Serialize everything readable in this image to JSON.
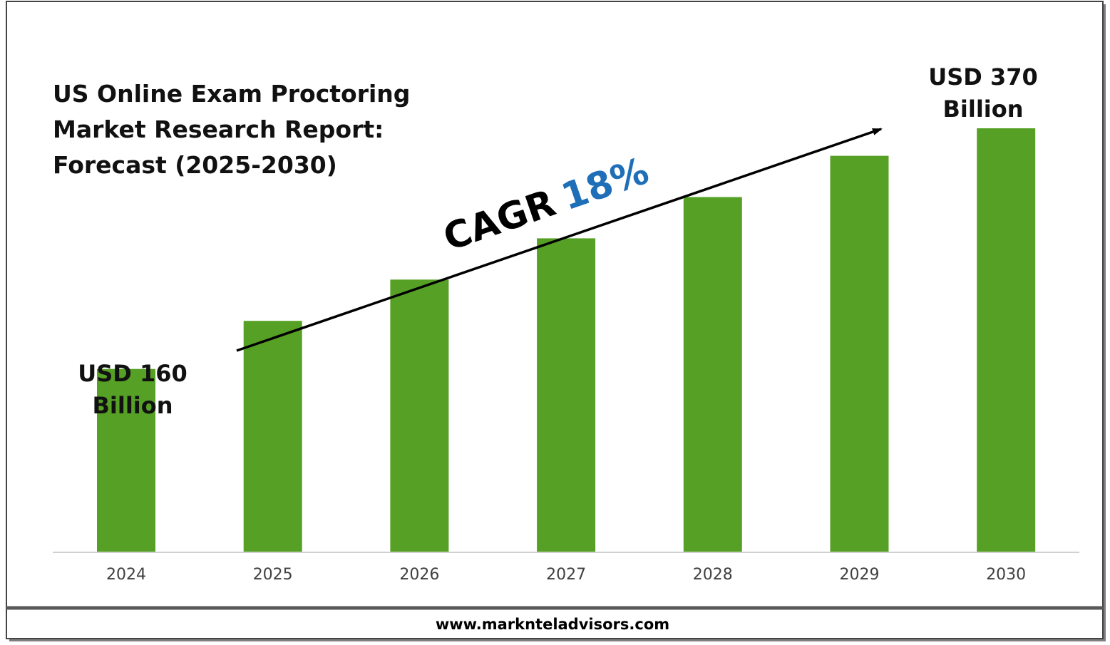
{
  "chart_data": {
    "type": "bar",
    "title": "US Online Exam Proctoring Market Research Report: Forecast (2025-2030)",
    "title_lines": [
      "US Online Exam Proctoring",
      "Market Research Report:",
      "Forecast (2025-2030)"
    ],
    "categories": [
      "2024",
      "2025",
      "2026",
      "2027",
      "2028",
      "2029",
      "2030"
    ],
    "values": [
      160,
      202,
      238,
      274,
      310,
      346,
      370
    ],
    "unit": "USD Billion",
    "ylim": [
      0,
      400
    ],
    "grid": false,
    "bar_color": "#56a125",
    "annotations": {
      "first_value": [
        "USD 160",
        "Billion"
      ],
      "last_value": [
        "USD 370",
        "Billion"
      ],
      "cagr_label": "CAGR",
      "cagr_value": "18%",
      "cagr_color": "#1f6fb8"
    }
  },
  "footer": {
    "url": "www.marknteladvisors.com"
  }
}
